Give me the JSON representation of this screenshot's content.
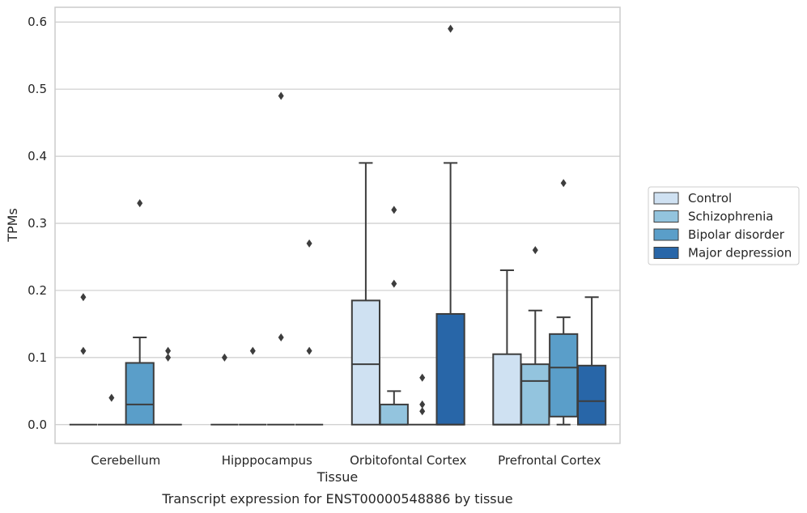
{
  "chart_data": {
    "type": "box",
    "xlabel": "Tissue",
    "ylabel": "TPMs",
    "ylim": [
      -0.028,
      0.622
    ],
    "yticks": [
      0.0,
      0.1,
      0.2,
      0.3,
      0.4,
      0.5,
      0.6
    ],
    "ytick_labels": [
      "0.0",
      "0.1",
      "0.2",
      "0.3",
      "0.4",
      "0.5",
      "0.6"
    ],
    "grid": "horizontal",
    "legend_position": "center-right",
    "caption": "Transcript expression for ENST00000548886 by tissue",
    "categories": [
      "Cerebellum",
      "Hipppocampus",
      "Orbitofontal Cortex",
      "Prefrontal Cortex"
    ],
    "series": [
      {
        "name": "Control",
        "color": "#cfe1f2",
        "boxes": [
          {
            "q1": 0,
            "median": 0,
            "q3": 0,
            "whisker_low": 0,
            "whisker_high": 0,
            "outliers": [
              0.11,
              0.19
            ]
          },
          {
            "q1": 0,
            "median": 0,
            "q3": 0,
            "whisker_low": 0,
            "whisker_high": 0,
            "outliers": [
              0.1
            ]
          },
          {
            "q1": 0,
            "median": 0.09,
            "q3": 0.185,
            "whisker_low": 0,
            "whisker_high": 0.39,
            "outliers": []
          },
          {
            "q1": 0,
            "median": 0.0,
            "q3": 0.105,
            "whisker_low": 0,
            "whisker_high": 0.23,
            "outliers": []
          }
        ]
      },
      {
        "name": "Schizophrenia",
        "color": "#93c4de",
        "boxes": [
          {
            "q1": 0,
            "median": 0,
            "q3": 0,
            "whisker_low": 0,
            "whisker_high": 0,
            "outliers": [
              0.04
            ]
          },
          {
            "q1": 0,
            "median": 0,
            "q3": 0,
            "whisker_low": 0,
            "whisker_high": 0,
            "outliers": [
              0.11
            ]
          },
          {
            "q1": 0,
            "median": 0.0,
            "q3": 0.03,
            "whisker_low": 0,
            "whisker_high": 0.05,
            "outliers": [
              0.21,
              0.32
            ]
          },
          {
            "q1": 0,
            "median": 0.065,
            "q3": 0.09,
            "whisker_low": 0,
            "whisker_high": 0.17,
            "outliers": [
              0.26
            ]
          }
        ]
      },
      {
        "name": "Bipolar disorder",
        "color": "#5a9ec9",
        "boxes": [
          {
            "q1": 0,
            "median": 0.03,
            "q3": 0.092,
            "whisker_low": 0,
            "whisker_high": 0.13,
            "outliers": [
              0.33
            ]
          },
          {
            "q1": 0,
            "median": 0,
            "q3": 0,
            "whisker_low": 0,
            "whisker_high": 0,
            "outliers": [
              0.13,
              0.49
            ]
          },
          {
            "q1": 0,
            "median": 0,
            "q3": 0,
            "whisker_low": 0,
            "whisker_high": 0,
            "outliers": [
              0.02,
              0.03,
              0.07
            ]
          },
          {
            "q1": 0.012,
            "median": 0.085,
            "q3": 0.135,
            "whisker_low": 0,
            "whisker_high": 0.16,
            "outliers": [
              0.36
            ]
          }
        ]
      },
      {
        "name": "Major depression",
        "color": "#2866a8",
        "boxes": [
          {
            "q1": 0,
            "median": 0,
            "q3": 0,
            "whisker_low": 0,
            "whisker_high": 0,
            "outliers": [
              0.1,
              0.11
            ]
          },
          {
            "q1": 0,
            "median": 0,
            "q3": 0,
            "whisker_low": 0,
            "whisker_high": 0,
            "outliers": [
              0.11,
              0.27
            ]
          },
          {
            "q1": 0,
            "median": 0.0,
            "q3": 0.165,
            "whisker_low": 0,
            "whisker_high": 0.39,
            "outliers": [
              0.59
            ]
          },
          {
            "q1": 0,
            "median": 0.035,
            "q3": 0.088,
            "whisker_low": 0,
            "whisker_high": 0.19,
            "outliers": []
          }
        ]
      }
    ]
  }
}
